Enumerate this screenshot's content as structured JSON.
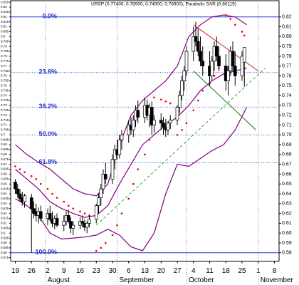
{
  "chart_data": {
    "type": "candlestick",
    "title": "URSP (0.77400, 0.78900, 0.74900, 0.78900), Parabolic SAR (0.80119)",
    "x": [
      0,
      1,
      2,
      3,
      4,
      7,
      8,
      9,
      10,
      11,
      14,
      15,
      16,
      17,
      18,
      21,
      22,
      23,
      24,
      25,
      28,
      29,
      30,
      31,
      32,
      35,
      36,
      37,
      38,
      39,
      42,
      43,
      44,
      45,
      46,
      49,
      50,
      51,
      52,
      53,
      56,
      57,
      58,
      59,
      60,
      63,
      64,
      65,
      66,
      67,
      70,
      71,
      72,
      73,
      74,
      77,
      78,
      79,
      80,
      81,
      84,
      85,
      86,
      87,
      88,
      91,
      92,
      93,
      94,
      95,
      98,
      99
    ],
    "open": [
      0.652,
      0.645,
      0.64,
      0.636,
      0.632,
      0.636,
      0.625,
      0.622,
      0.618,
      0.622,
      0.615,
      0.62,
      0.614,
      0.61,
      0.615,
      0.608,
      0.612,
      0.618,
      0.612,
      0.605,
      0.608,
      0.612,
      0.61,
      0.606,
      0.61,
      0.614,
      0.628,
      0.636,
      0.645,
      0.66,
      0.655,
      0.675,
      0.685,
      0.68,
      0.695,
      0.7,
      0.71,
      0.705,
      0.715,
      0.725,
      0.718,
      0.73,
      0.72,
      0.728,
      0.71,
      0.715,
      0.712,
      0.708,
      0.705,
      0.712,
      0.715,
      0.728,
      0.74,
      0.755,
      0.765,
      0.785,
      0.8,
      0.795,
      0.785,
      0.775,
      0.77,
      0.76,
      0.775,
      0.79,
      0.78,
      0.77,
      0.755,
      0.765,
      0.785,
      0.77,
      0.76,
      0.774
    ],
    "high": [
      0.655,
      0.65,
      0.645,
      0.642,
      0.64,
      0.64,
      0.632,
      0.63,
      0.626,
      0.628,
      0.625,
      0.628,
      0.622,
      0.618,
      0.62,
      0.618,
      0.622,
      0.624,
      0.616,
      0.612,
      0.616,
      0.618,
      0.614,
      0.612,
      0.618,
      0.63,
      0.64,
      0.65,
      0.665,
      0.672,
      0.68,
      0.69,
      0.695,
      0.7,
      0.705,
      0.715,
      0.718,
      0.72,
      0.73,
      0.735,
      0.738,
      0.736,
      0.732,
      0.734,
      0.72,
      0.722,
      0.718,
      0.716,
      0.714,
      0.72,
      0.73,
      0.745,
      0.76,
      0.77,
      0.79,
      0.81,
      0.815,
      0.808,
      0.8,
      0.79,
      0.785,
      0.78,
      0.795,
      0.8,
      0.79,
      0.782,
      0.77,
      0.79,
      0.795,
      0.785,
      0.785,
      0.789
    ],
    "low": [
      0.64,
      0.636,
      0.632,
      0.628,
      0.626,
      0.58,
      0.615,
      0.612,
      0.61,
      0.612,
      0.608,
      0.612,
      0.606,
      0.604,
      0.606,
      0.602,
      0.608,
      0.61,
      0.6,
      0.598,
      0.604,
      0.606,
      0.602,
      0.6,
      0.606,
      0.61,
      0.62,
      0.628,
      0.64,
      0.65,
      0.65,
      0.665,
      0.675,
      0.676,
      0.685,
      0.692,
      0.7,
      0.698,
      0.708,
      0.712,
      0.712,
      0.715,
      0.708,
      0.7,
      0.702,
      0.705,
      0.7,
      0.698,
      0.7,
      0.706,
      0.71,
      0.722,
      0.735,
      0.745,
      0.76,
      0.775,
      0.79,
      0.78,
      0.77,
      0.76,
      0.75,
      0.755,
      0.765,
      0.775,
      0.765,
      0.745,
      0.74,
      0.76,
      0.765,
      0.75,
      0.755,
      0.749
    ],
    "close": [
      0.645,
      0.64,
      0.635,
      0.632,
      0.638,
      0.625,
      0.62,
      0.618,
      0.622,
      0.615,
      0.62,
      0.614,
      0.61,
      0.615,
      0.608,
      0.612,
      0.618,
      0.612,
      0.605,
      0.608,
      0.612,
      0.61,
      0.606,
      0.61,
      0.614,
      0.628,
      0.636,
      0.645,
      0.66,
      0.655,
      0.675,
      0.685,
      0.68,
      0.695,
      0.7,
      0.71,
      0.705,
      0.715,
      0.725,
      0.718,
      0.73,
      0.72,
      0.728,
      0.71,
      0.715,
      0.712,
      0.708,
      0.705,
      0.712,
      0.715,
      0.728,
      0.74,
      0.755,
      0.765,
      0.785,
      0.8,
      0.795,
      0.785,
      0.775,
      0.77,
      0.76,
      0.775,
      0.79,
      0.78,
      0.77,
      0.755,
      0.765,
      0.785,
      0.77,
      0.76,
      0.78,
      0.789
    ],
    "up_color": "#ffffff",
    "down_color": "#000000",
    "bands": {
      "color": "#800080",
      "x": [
        0,
        5,
        10,
        15,
        20,
        25,
        30,
        35,
        40,
        45,
        50,
        55,
        60,
        65,
        70,
        75,
        80,
        85,
        90,
        95,
        100
      ],
      "upper": [
        0.69,
        0.68,
        0.672,
        0.665,
        0.655,
        0.645,
        0.64,
        0.638,
        0.65,
        0.69,
        0.72,
        0.735,
        0.745,
        0.755,
        0.77,
        0.8,
        0.812,
        0.82,
        0.822,
        0.82,
        0.812
      ],
      "middle": [
        0.665,
        0.655,
        0.645,
        0.632,
        0.625,
        0.62,
        0.616,
        0.618,
        0.628,
        0.65,
        0.67,
        0.69,
        0.7,
        0.71,
        0.718,
        0.73,
        0.745,
        0.755,
        0.762,
        0.765,
        0.768
      ],
      "lower": [
        0.635,
        0.628,
        0.618,
        0.6,
        0.594,
        0.595,
        0.596,
        0.598,
        0.604,
        0.598,
        0.586,
        0.582,
        0.6,
        0.64,
        0.67,
        0.668,
        0.676,
        0.684,
        0.69,
        0.705,
        0.728
      ]
    },
    "sar": {
      "color": "#e00000",
      "x": [
        0,
        2,
        4,
        7,
        9,
        11,
        14,
        16,
        18,
        21,
        23,
        25,
        28,
        30,
        32,
        35,
        37,
        39,
        42,
        44,
        46,
        49,
        51,
        53,
        56,
        58,
        60,
        63,
        65,
        67,
        70,
        72,
        74,
        77,
        79,
        81,
        84,
        86,
        88,
        91,
        93,
        95,
        98,
        99
      ],
      "values": [
        0.668,
        0.665,
        0.662,
        0.658,
        0.655,
        0.65,
        0.645,
        0.64,
        0.636,
        0.632,
        0.628,
        0.625,
        0.622,
        0.62,
        0.618,
        0.582,
        0.585,
        0.59,
        0.598,
        0.608,
        0.62,
        0.635,
        0.65,
        0.665,
        0.68,
        0.695,
        0.738,
        0.736,
        0.734,
        0.732,
        0.7,
        0.705,
        0.712,
        0.725,
        0.735,
        0.745,
        0.752,
        0.76,
        0.768,
        0.822,
        0.818,
        0.812,
        0.805,
        0.801
      ]
    },
    "fib": {
      "color": "#2233cc",
      "levels": [
        {
          "value": 0.82,
          "label": "0.0%"
        },
        {
          "value": 0.7634,
          "label": "23.6%"
        },
        {
          "value": 0.7283,
          "label": "38.2%"
        },
        {
          "value": 0.7,
          "label": "50.0%"
        },
        {
          "value": 0.6717,
          "label": "61.8%"
        },
        {
          "value": 0.58,
          "label": "100.0%"
        }
      ]
    },
    "trendlines": [
      {
        "x1": 35,
        "y1": 0.608,
        "x2": 108,
        "y2": 0.768,
        "color": "#33aa33",
        "dashed": true
      },
      {
        "x1": 77,
        "y1": 0.812,
        "x2": 105,
        "y2": 0.765,
        "color": "#dd2222",
        "dashed": false
      },
      {
        "x1": 77,
        "y1": 0.765,
        "x2": 104,
        "y2": 0.705,
        "color": "#117711",
        "dashed": false
      }
    ],
    "ylim": [
      0.5715,
      0.8365
    ],
    "yticks": [
      0.82,
      0.81,
      {
        "value": 0.8,
        "label": "0.80"
      },
      0.79,
      0.78,
      0.77,
      0.76,
      0.75,
      0.74,
      0.73,
      0.72,
      0.71,
      {
        "value": 0.7,
        "label": "0.70"
      },
      0.69,
      0.68,
      0.67,
      0.66,
      0.65,
      0.64,
      0.63,
      0.62,
      0.61,
      {
        "value": 0.6,
        "label": "0.60"
      },
      0.59,
      0.58
    ],
    "yticks_left": [
      0.835,
      0.83,
      0.825,
      0.82,
      0.815,
      0.81,
      0.805,
      0.8,
      0.795,
      0.79,
      0.785,
      0.78,
      0.775,
      0.77,
      0.765,
      0.76,
      0.755,
      0.75,
      0.745,
      0.74,
      0.735,
      0.73,
      0.725,
      0.72,
      0.715,
      0.71,
      0.705,
      0.7,
      0.695,
      0.69,
      0.685,
      0.68,
      0.675,
      0.67,
      0.665,
      0.66,
      0.655,
      0.65,
      0.645,
      0.64,
      0.635,
      0.63,
      0.625,
      0.62,
      0.615,
      0.61,
      0.605,
      0.6,
      0.595,
      0.59,
      0.585,
      0.58,
      0.575
    ],
    "xlim": [
      -2,
      114
    ],
    "xticks": [
      {
        "value": 0,
        "label": "19"
      },
      {
        "value": 7,
        "label": "26"
      },
      {
        "value": 14,
        "label": "2"
      },
      {
        "value": 21,
        "label": "9"
      },
      {
        "value": 28,
        "label": "16"
      },
      {
        "value": 35,
        "label": "23"
      },
      {
        "value": 42,
        "label": "30"
      },
      {
        "value": 49,
        "label": "6"
      },
      {
        "value": 56,
        "label": "13"
      },
      {
        "value": 63,
        "label": "20"
      },
      {
        "value": 70,
        "label": "27"
      },
      {
        "value": 77,
        "label": "4"
      },
      {
        "value": 84,
        "label": "11"
      },
      {
        "value": 91,
        "label": "18"
      },
      {
        "value": 98,
        "label": "25"
      },
      {
        "value": 105,
        "label": "1"
      },
      {
        "value": 112,
        "label": "8"
      }
    ],
    "month_ticks": [
      {
        "value": 13,
        "label": "August"
      },
      {
        "value": 44,
        "label": "September"
      },
      {
        "value": 74,
        "label": "October"
      },
      {
        "value": 105,
        "label": "November"
      }
    ]
  }
}
